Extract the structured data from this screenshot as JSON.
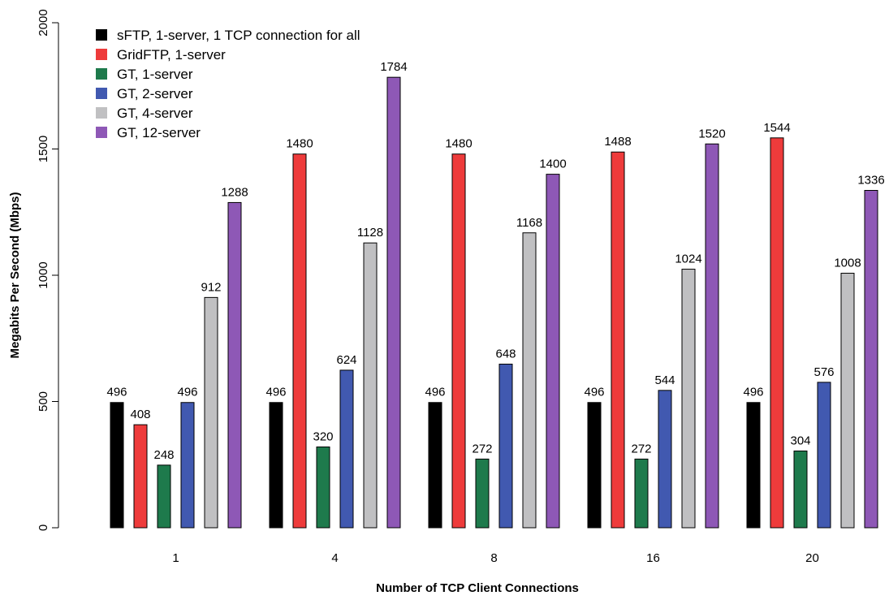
{
  "chart_data": {
    "type": "bar",
    "xlabel": "Number of TCP Client Connections",
    "ylabel": "Megabits Per Second (Mbps)",
    "ylim": [
      0,
      2000
    ],
    "yticks": [
      0,
      500,
      1000,
      1500,
      2000
    ],
    "categories": [
      "1",
      "4",
      "8",
      "16",
      "20"
    ],
    "legend_position": "top-left",
    "grid": false,
    "series": [
      {
        "name": "sFTP, 1-server, 1 TCP connection for all",
        "color": "#000000",
        "values": [
          496,
          496,
          496,
          496,
          496
        ]
      },
      {
        "name": "GridFTP, 1-server",
        "color": "#ee3b3b",
        "values": [
          408,
          1480,
          1480,
          1488,
          1544
        ]
      },
      {
        "name": "GT, 1-server",
        "color": "#1e7a4c",
        "values": [
          248,
          320,
          272,
          272,
          304
        ]
      },
      {
        "name": "GT, 2-server",
        "color": "#4159b0",
        "values": [
          496,
          624,
          648,
          544,
          576
        ]
      },
      {
        "name": "GT, 4-server",
        "color": "#c0c0c2",
        "values": [
          912,
          1128,
          1168,
          1024,
          1008
        ]
      },
      {
        "name": "GT, 12-server",
        "color": "#8e58b6",
        "values": [
          1288,
          1784,
          1400,
          1520,
          1336
        ]
      }
    ]
  }
}
